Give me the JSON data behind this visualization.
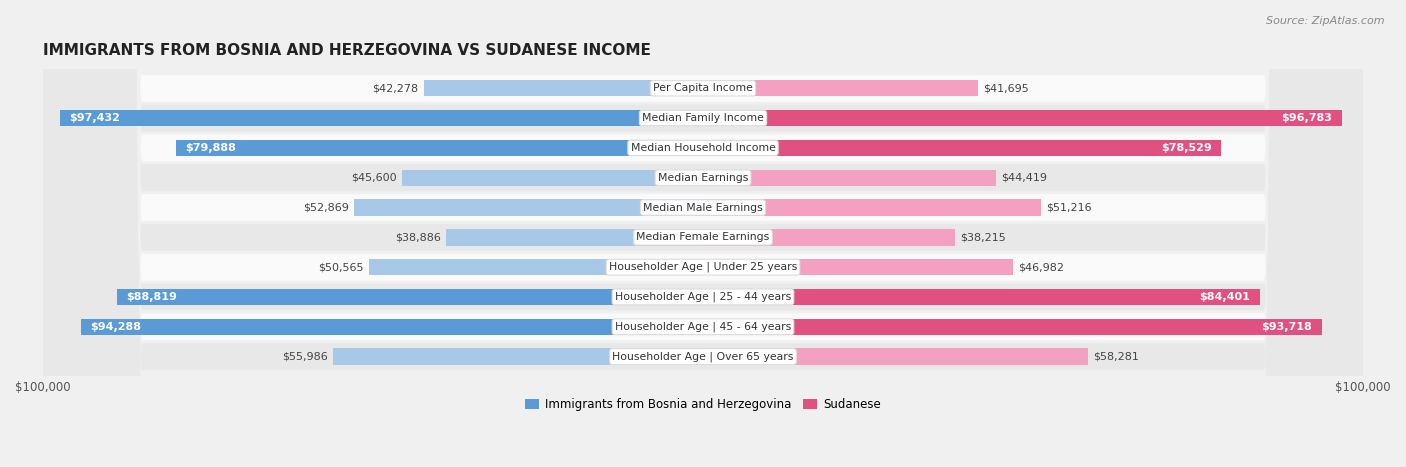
{
  "title": "IMMIGRANTS FROM BOSNIA AND HERZEGOVINA VS SUDANESE INCOME",
  "source": "Source: ZipAtlas.com",
  "categories": [
    "Per Capita Income",
    "Median Family Income",
    "Median Household Income",
    "Median Earnings",
    "Median Male Earnings",
    "Median Female Earnings",
    "Householder Age | Under 25 years",
    "Householder Age | 25 - 44 years",
    "Householder Age | 45 - 64 years",
    "Householder Age | Over 65 years"
  ],
  "bosnia_values": [
    42278,
    97432,
    79888,
    45600,
    52869,
    38886,
    50565,
    88819,
    94288,
    55986
  ],
  "sudanese_values": [
    41695,
    96783,
    78529,
    44419,
    51216,
    38215,
    46982,
    84401,
    93718,
    58281
  ],
  "bosnia_labels": [
    "$42,278",
    "$97,432",
    "$79,888",
    "$45,600",
    "$52,869",
    "$38,886",
    "$50,565",
    "$88,819",
    "$94,288",
    "$55,986"
  ],
  "sudanese_labels": [
    "$41,695",
    "$96,783",
    "$78,529",
    "$44,419",
    "$51,216",
    "$38,215",
    "$46,982",
    "$84,401",
    "$93,718",
    "$58,281"
  ],
  "bosnia_color_light": "#a8c8e8",
  "bosnia_color_dark": "#5b9bd5",
  "sudanese_color_light": "#f4a0c0",
  "sudanese_color_dark": "#e05080",
  "max_value": 100000,
  "background_color": "#f0f0f0",
  "row_bg_light": "#fafafa",
  "row_bg_dark": "#e8e8e8",
  "legend_bosnia": "Immigrants from Bosnia and Herzegovina",
  "legend_sudanese": "Sudanese",
  "inside_label_threshold": 70000,
  "xlabel_left": "$100,000",
  "xlabel_right": "$100,000"
}
